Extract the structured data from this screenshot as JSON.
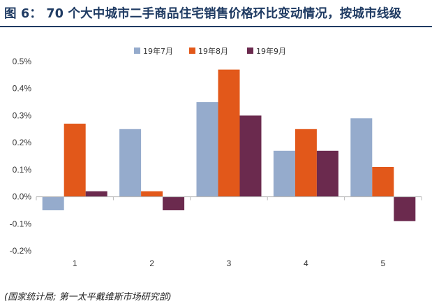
{
  "figure": {
    "title": "图 6： 70 个大中城市二手商品住宅销售价格环比变动情况，按城市线级",
    "source": "(国家统计局; 第一太平戴维斯市场研究部)"
  },
  "colors": {
    "series": [
      "#95abcc",
      "#e2581a",
      "#6b2a4e"
    ],
    "title": "#1f3b63",
    "axis": "#b9b9b9"
  },
  "chart_data": {
    "type": "bar",
    "categories": [
      "1",
      "2",
      "3",
      "4",
      "5"
    ],
    "series": [
      {
        "name": "19年7月",
        "values": [
          -0.05,
          0.25,
          0.35,
          0.17,
          0.29
        ]
      },
      {
        "name": "19年8月",
        "values": [
          0.27,
          0.02,
          0.47,
          0.25,
          0.11
        ]
      },
      {
        "name": "19年9月",
        "values": [
          0.02,
          -0.05,
          0.3,
          0.17,
          -0.09
        ]
      }
    ],
    "ylim": [
      -0.2,
      0.5
    ],
    "yticks": [
      -0.2,
      -0.1,
      0.0,
      0.1,
      0.2,
      0.3,
      0.4,
      0.5
    ],
    "ytick_labels": [
      "-0.2%",
      "-0.1%",
      "0.0%",
      "0.1%",
      "0.2%",
      "0.3%",
      "0.4%",
      "0.5%"
    ],
    "grid": false,
    "legend": "top-center"
  }
}
